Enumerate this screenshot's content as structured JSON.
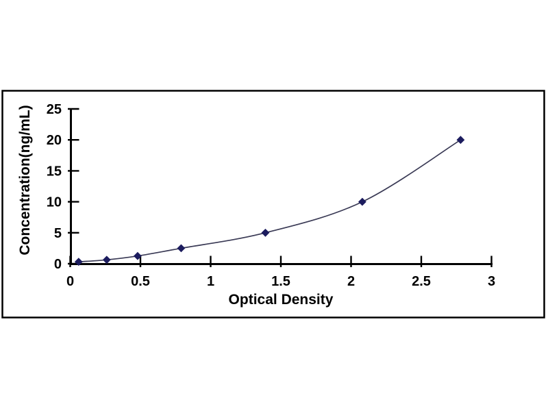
{
  "chart_data": {
    "type": "line",
    "title": "",
    "xlabel": "Optical Density",
    "ylabel": "Concentration(ng/mL)",
    "xlim": [
      0,
      3
    ],
    "ylim": [
      0,
      25
    ],
    "grid": false,
    "legend": "none",
    "x_ticks": {
      "values": [
        0,
        0.5,
        1,
        1.5,
        2,
        2.5,
        3
      ],
      "labels": [
        "0",
        "0.5",
        "1",
        "1.5",
        "2",
        "2.5",
        "3"
      ]
    },
    "y_ticks": {
      "values": [
        0,
        5,
        10,
        15,
        20,
        25
      ],
      "labels": [
        "0",
        "5",
        "10",
        "15",
        "20",
        "25"
      ]
    },
    "series": [
      {
        "marker": "diamond",
        "smooth": true,
        "marker_color": "#1c1c5e",
        "line_color": "#3a3a55",
        "points": [
          {
            "x": 0.06,
            "y": 0.31
          },
          {
            "x": 0.26,
            "y": 0.63
          },
          {
            "x": 0.48,
            "y": 1.25
          },
          {
            "x": 0.79,
            "y": 2.5
          },
          {
            "x": 1.39,
            "y": 5
          },
          {
            "x": 2.08,
            "y": 10
          },
          {
            "x": 2.78,
            "y": 20
          }
        ]
      }
    ],
    "colors": {
      "axis": "#000000",
      "text": "#000000",
      "frame": "#000000",
      "background": "#ffffff"
    }
  }
}
